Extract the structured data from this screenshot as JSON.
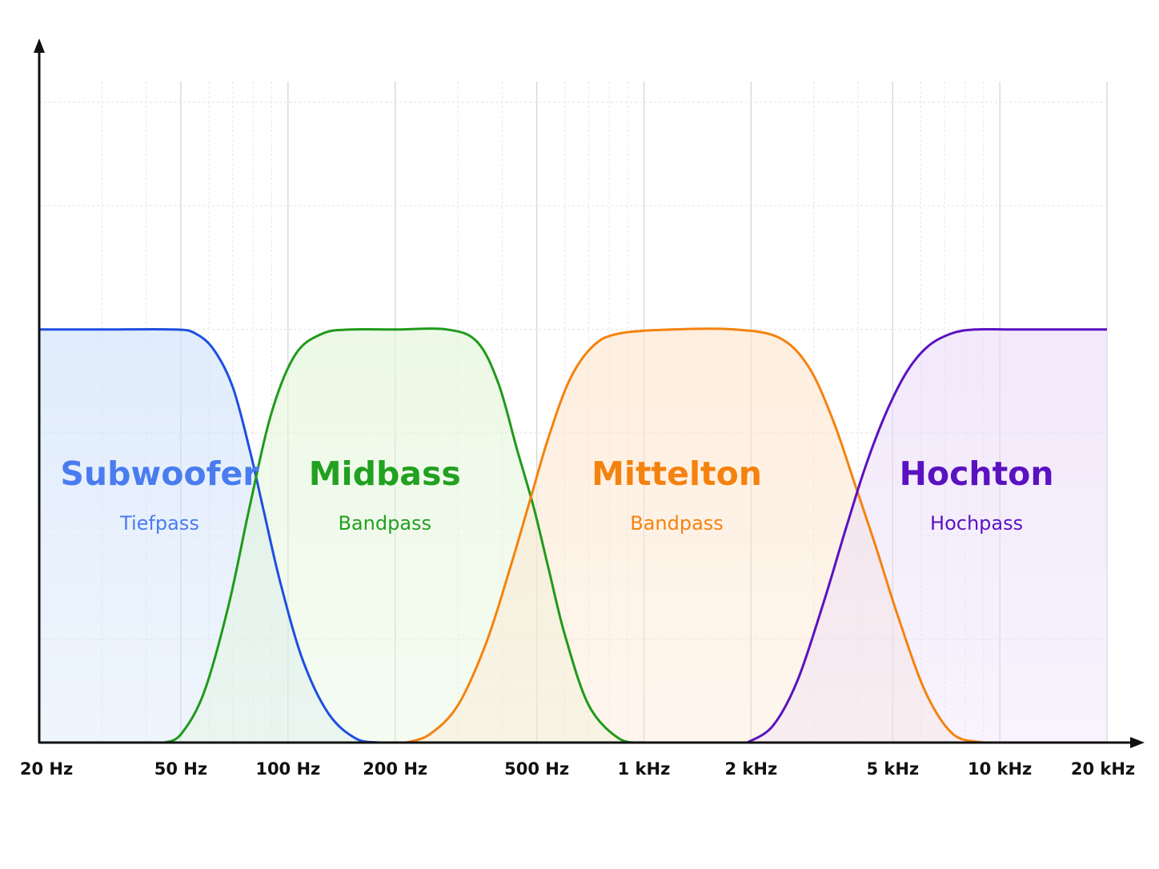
{
  "chart_data": {
    "type": "area",
    "x_scale": "log",
    "x_unit": "Hz",
    "xlim": [
      20,
      20000
    ],
    "ylim": [
      0,
      1.6
    ],
    "grid": true,
    "ticks": [
      {
        "value": 20,
        "label": "20 Hz"
      },
      {
        "value": 50,
        "label": "50 Hz"
      },
      {
        "value": 100,
        "label": "100 Hz"
      },
      {
        "value": 200,
        "label": "200 Hz"
      },
      {
        "value": 500,
        "label": "500 Hz"
      },
      {
        "value": 1000,
        "label": "1 kHz"
      },
      {
        "value": 2000,
        "label": "2 kHz"
      },
      {
        "value": 5000,
        "label": "5 kHz"
      },
      {
        "value": 10000,
        "label": "10 kHz"
      },
      {
        "value": 20000,
        "label": "20 kHz"
      }
    ],
    "series": [
      {
        "name": "Subwoofer",
        "subtitle": "Tiefpass",
        "filter": "lowpass",
        "color": "#1f4fe0",
        "label_color": "#4a7cf0",
        "fill": "#cfe2fa",
        "x": [
          20,
          30,
          48,
          55,
          62,
          70,
          78,
          85,
          95,
          110,
          130,
          155,
          180
        ],
        "y": [
          1.0,
          1.0,
          1.0,
          0.99,
          0.95,
          0.86,
          0.71,
          0.57,
          0.39,
          0.2,
          0.07,
          0.01,
          0.0
        ]
      },
      {
        "name": "Midbass",
        "subtitle": "Bandpass",
        "filter": "bandpass",
        "color": "#1f9a1a",
        "label_color": "#22a020",
        "fill": "#e2f5d8",
        "x": [
          45,
          50,
          58,
          68,
          78,
          90,
          105,
          125,
          150,
          200,
          280,
          340,
          390,
          440,
          490,
          540,
          600,
          700,
          850,
          1000
        ],
        "y": [
          0.0,
          0.02,
          0.12,
          0.33,
          0.57,
          0.8,
          0.94,
          0.99,
          1.0,
          1.0,
          1.0,
          0.97,
          0.87,
          0.71,
          0.57,
          0.42,
          0.26,
          0.09,
          0.01,
          0.0
        ]
      },
      {
        "name": "Mittelton",
        "subtitle": "Bandpass",
        "filter": "bandpass",
        "color": "#f5820f",
        "label_color": "#f5820f",
        "fill": "#fde5cc",
        "x": [
          215,
          250,
          300,
          360,
          420,
          480,
          540,
          620,
          720,
          850,
          1200,
          1800,
          2400,
          2900,
          3400,
          3900,
          4500,
          5200,
          6200,
          7400,
          9000
        ],
        "y": [
          0.0,
          0.02,
          0.09,
          0.24,
          0.42,
          0.59,
          0.74,
          0.88,
          0.96,
          0.99,
          1.0,
          1.0,
          0.98,
          0.91,
          0.78,
          0.63,
          0.47,
          0.3,
          0.12,
          0.02,
          0.0
        ]
      },
      {
        "name": "Hochton",
        "subtitle": "Hochpass",
        "filter": "highpass",
        "color": "#5a12c0",
        "label_color": "#5a12c0",
        "fill": "#eadcf8",
        "x": [
          1950,
          2300,
          2700,
          3200,
          3700,
          4200,
          4800,
          5500,
          6300,
          7300,
          8500,
          11000,
          20000
        ],
        "y": [
          0.0,
          0.04,
          0.15,
          0.34,
          0.52,
          0.67,
          0.8,
          0.9,
          0.96,
          0.99,
          1.0,
          1.0,
          1.0
        ]
      }
    ]
  }
}
